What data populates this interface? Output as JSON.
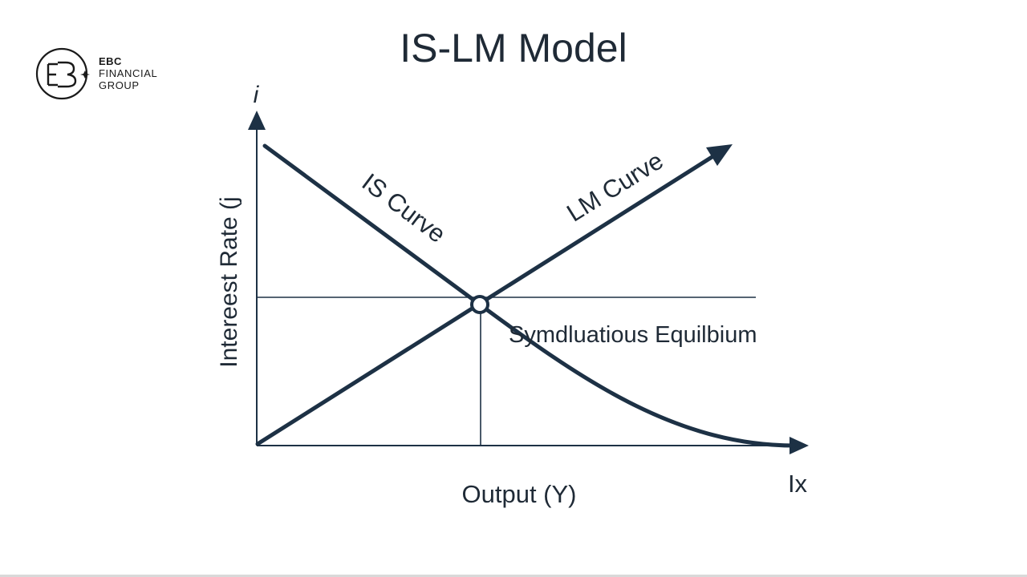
{
  "title": "IS-LM Model",
  "brand": {
    "name_line1": "EBC",
    "name_line2": "FINANCIAL",
    "name_line3": "GROUP",
    "logo_icon": "ebc-monogram-icon"
  },
  "axes": {
    "y_symbol": "i",
    "y_label": "Intereest Rate (j",
    "x_symbol": "Ix",
    "x_label": "Output (Y)"
  },
  "curves": {
    "is_label": "IS Curve",
    "lm_label": "LM Curve"
  },
  "equilibrium_label": "Symdluatious Equilbium",
  "colors": {
    "ink": "#1f2a36",
    "line": "#1d3145",
    "background": "#ffffff"
  }
}
